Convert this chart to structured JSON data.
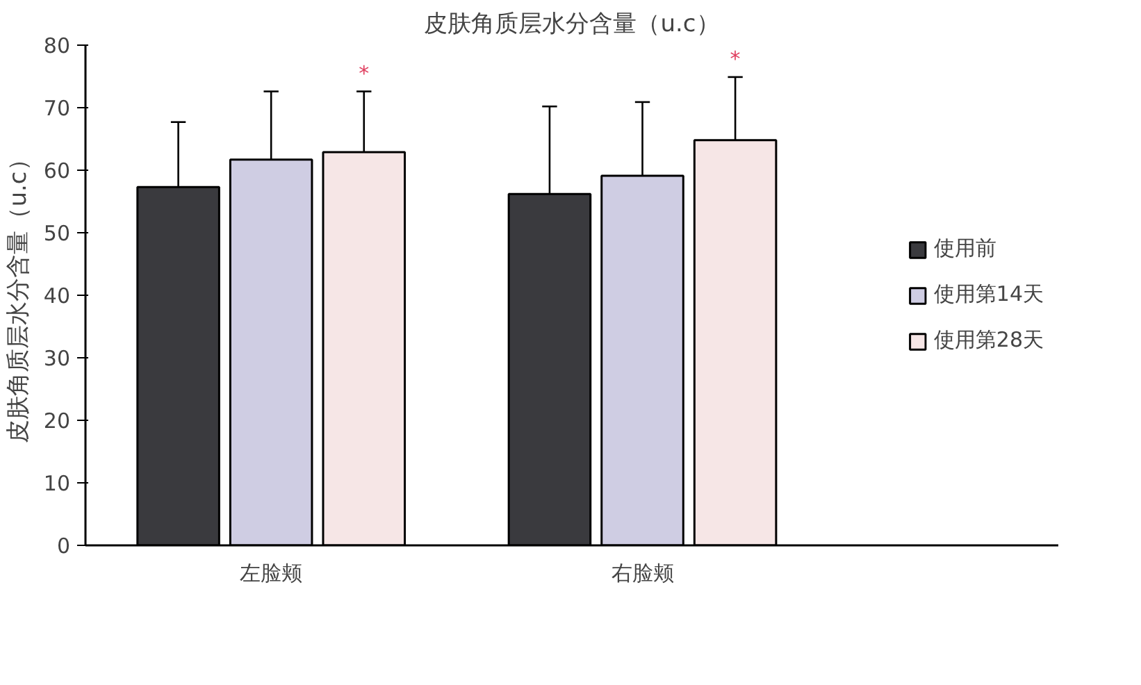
{
  "chart_data": {
    "type": "bar",
    "title": "皮肤角质层水分含量（u.c）",
    "ylabel": "皮肤角质层水分含量（u.c）",
    "categories": [
      "左脸颊",
      "右脸颊"
    ],
    "series": [
      {
        "name": "使用前",
        "color": "#3a3a3e",
        "values": [
          57.3,
          56.2
        ],
        "errors": [
          [
            57.3,
            67.7
          ],
          [
            56.2,
            70.2
          ]
        ]
      },
      {
        "name": "使用第14天",
        "color": "#cfcde3",
        "values": [
          61.7,
          59.1
        ],
        "errors": [
          [
            61.7,
            72.6
          ],
          [
            59.1,
            70.9
          ]
        ]
      },
      {
        "name": "使用第28天",
        "color": "#f6e6e6",
        "values": [
          62.9,
          64.8
        ],
        "errors": [
          [
            62.9,
            72.6
          ],
          [
            64.8,
            74.9
          ]
        ]
      }
    ],
    "annotations": [
      "*",
      "*"
    ],
    "ylim": [
      0,
      80
    ],
    "yticks": [
      0,
      10,
      20,
      30,
      40,
      50,
      60,
      70,
      80
    ],
    "grid": false,
    "legend": "right"
  }
}
